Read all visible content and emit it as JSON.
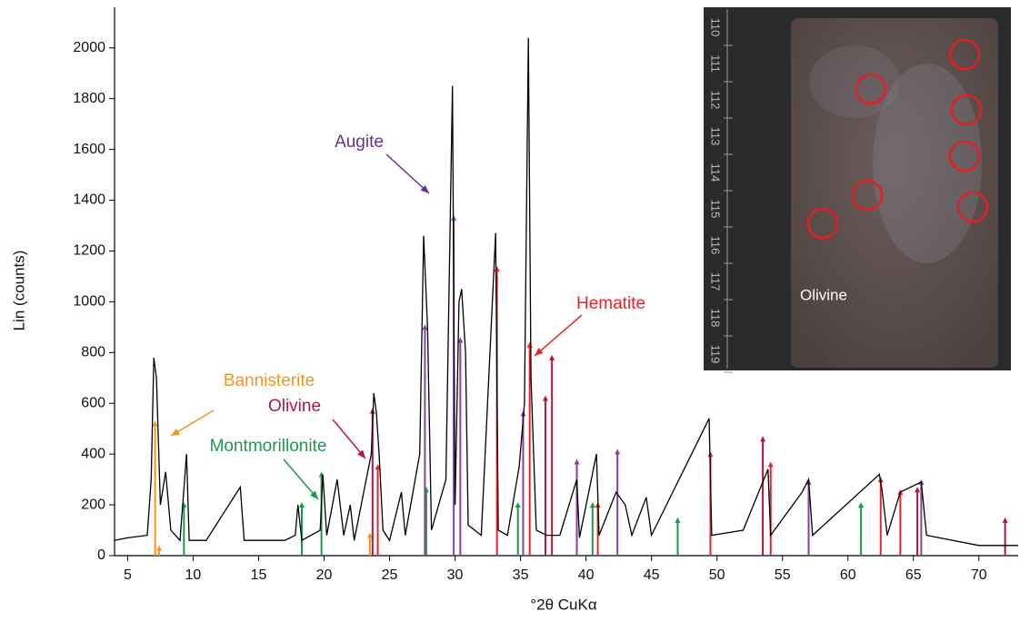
{
  "chart_data": {
    "type": "line",
    "xlabel": "°2θ CuKα",
    "ylabel": "Lin (counts)",
    "xlim": [
      4,
      73
    ],
    "ylim": [
      0,
      2160
    ],
    "xticks": [
      5,
      10,
      15,
      20,
      25,
      30,
      35,
      40,
      45,
      50,
      55,
      60,
      65,
      70
    ],
    "yticks": [
      0,
      200,
      400,
      600,
      800,
      1000,
      1200,
      1400,
      1600,
      1800,
      2000
    ],
    "series": [
      {
        "color": "#000000",
        "x": [
          4,
          5,
          6.5,
          6.8,
          7,
          7.2,
          7.5,
          7.9,
          8.3,
          9,
          9.5,
          9.7,
          11,
          13.6,
          13.9,
          17,
          17.8,
          18,
          18.3,
          19.7,
          19.9,
          20.2,
          21,
          21.5,
          22,
          22.3,
          23.6,
          23.8,
          24,
          24.2,
          24.5,
          25,
          25.9,
          26.2,
          27.3,
          27.6,
          27.9,
          28.2,
          29.3,
          29.8,
          30,
          30.3,
          30.5,
          30.8,
          31,
          32,
          33.1,
          33.3,
          34,
          34.9,
          35.3,
          35.6,
          35.8,
          36.2,
          37,
          38,
          39.3,
          39.5,
          40.8,
          41,
          42.3,
          43,
          43.5,
          44.6,
          45,
          49.4,
          49.6,
          52,
          53.9,
          54.1,
          56.5,
          57,
          57.3,
          62.4,
          62.6,
          63,
          64,
          65.6,
          66,
          70,
          73
        ],
        "values": [
          60,
          70,
          80,
          300,
          780,
          700,
          200,
          330,
          100,
          60,
          400,
          60,
          60,
          270,
          60,
          60,
          80,
          200,
          60,
          100,
          320,
          80,
          300,
          80,
          200,
          60,
          400,
          640,
          560,
          400,
          100,
          60,
          250,
          80,
          400,
          1260,
          900,
          100,
          300,
          1850,
          200,
          1000,
          1050,
          800,
          120,
          80,
          1270,
          100,
          80,
          350,
          600,
          2040,
          700,
          100,
          80,
          80,
          300,
          70,
          400,
          80,
          250,
          200,
          80,
          230,
          80,
          540,
          80,
          100,
          340,
          80,
          250,
          300,
          80,
          320,
          260,
          80,
          250,
          290,
          80,
          40,
          40
        ]
      }
    ],
    "phases": [
      {
        "color": "#f7941d",
        "x": [
          7.1,
          7.4,
          23.5
        ],
        "values": [
          520,
          30,
          80
        ]
      },
      {
        "color": "#1a9a48",
        "x": [
          9.3,
          18.3,
          19.8,
          27.8,
          34.8,
          40.5,
          47,
          61
        ],
        "values": [
          200,
          200,
          320,
          260,
          200,
          200,
          140,
          200
        ]
      },
      {
        "color": "#8b3fa0",
        "x": [
          27.7,
          29.9,
          30.4,
          35.2,
          39.3,
          42.4,
          57,
          65.6
        ],
        "values": [
          900,
          1330,
          850,
          560,
          370,
          410,
          290,
          290
        ]
      },
      {
        "color": "#e8242b",
        "x": [
          24.1,
          33.2,
          35.7,
          40.9,
          49.5,
          54.1,
          62.5,
          64
        ],
        "values": [
          350,
          1130,
          830,
          200,
          400,
          360,
          300,
          250
        ]
      },
      {
        "color": "#b5163b",
        "x": [
          23.7,
          36.9,
          37.4,
          53.5,
          65.3,
          72
        ],
        "values": [
          570,
          620,
          780,
          460,
          260,
          140
        ]
      }
    ],
    "annotations": [
      {
        "text": "Augite",
        "color": "#6a2f93"
      },
      {
        "text": "Hematite",
        "color": "#e8242b"
      },
      {
        "text": "Bannisterite",
        "color": "#f7941d"
      },
      {
        "text": "Olivine",
        "color": "#b5163b"
      },
      {
        "text": "Montmorillonite",
        "color": "#1a9a48"
      }
    ]
  },
  "inset": {
    "scale_labels": [
      "110",
      "111",
      "112",
      "113",
      "114",
      "115",
      "116",
      "117",
      "118",
      "119"
    ],
    "label": "Olivine"
  }
}
